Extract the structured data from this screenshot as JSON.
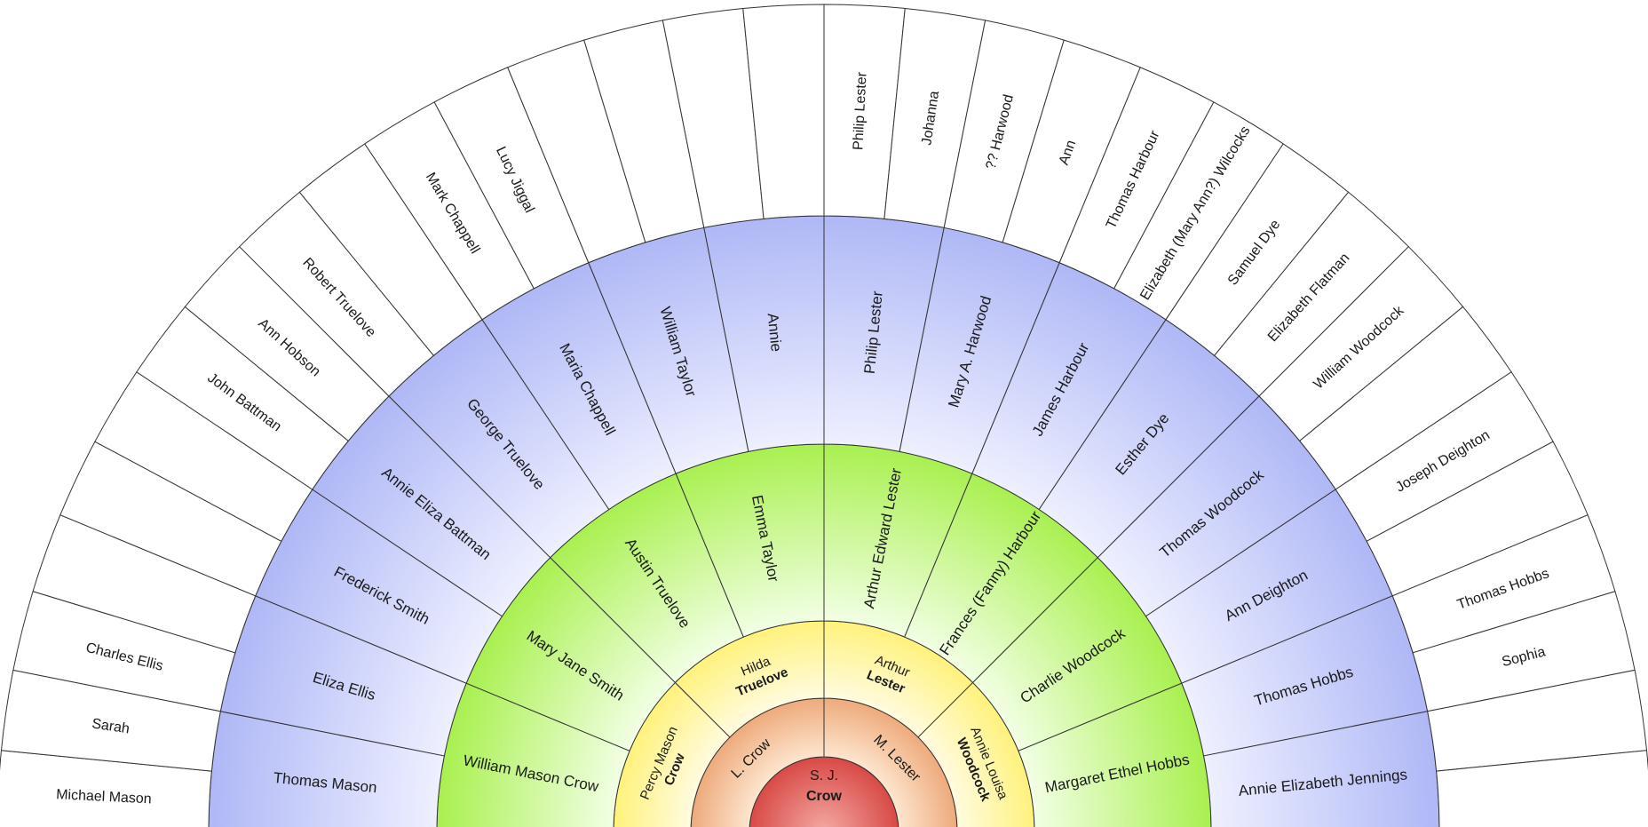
{
  "colors": {
    "ring1": [
      "#f4a9a4",
      "#d84a46"
    ],
    "ring2": [
      "#fde6cf",
      "#eeaa7c"
    ],
    "ring3": [
      "#fffbe0",
      "#fff27c"
    ],
    "ring4": [
      "#f2ffe4",
      "#a9f050"
    ],
    "ring5": [
      "#eef0ff",
      "#afb8f6"
    ],
    "ring6": [
      "#ffffff",
      "#ffffff"
    ],
    "line": "#333333"
  },
  "generations": [
    [
      {
        "line1": "S. J.",
        "line2": "Crow"
      }
    ],
    [
      {
        "line1": "L. Crow"
      },
      {
        "line1": "M. Lester"
      }
    ],
    [
      {
        "line1": "Percy Mason",
        "line2": "Crow"
      },
      {
        "line1": "Hilda",
        "line2": "Truelove"
      },
      {
        "line1": "Arthur",
        "line2": "Lester"
      },
      {
        "line1": "Annie Louisa",
        "line2": "Woodcock"
      }
    ],
    [
      {
        "line1": "William Mason Crow"
      },
      {
        "line1": "Mary Jane Smith"
      },
      {
        "line1": "Austin Truelove"
      },
      {
        "line1": "Emma Taylor"
      },
      {
        "line1": "Arthur Edward Lester"
      },
      {
        "line1": "Frances (Fanny) Harbour"
      },
      {
        "line1": "Charlie Woodcock"
      },
      {
        "line1": "Margaret Ethel Hobbs"
      }
    ],
    [
      {
        "line1": "Thomas Mason"
      },
      {
        "line1": "Eliza Ellis"
      },
      {
        "line1": "Frederick Smith"
      },
      {
        "line1": "Annie Eliza Battman"
      },
      {
        "line1": "George Truelove"
      },
      {
        "line1": "Maria Chappell"
      },
      {
        "line1": "William Taylor"
      },
      {
        "line1": "Annie"
      },
      {
        "line1": "Philip Lester"
      },
      {
        "line1": "Mary A. Harwood"
      },
      {
        "line1": "James Harbour"
      },
      {
        "line1": "Esther Dye"
      },
      {
        "line1": "Thomas Woodcock"
      },
      {
        "line1": "Ann Deighton"
      },
      {
        "line1": "Thomas Hobbs"
      },
      {
        "line1": "Annie Elizabeth Jennings"
      }
    ],
    [
      {
        "line1": "Michael Mason"
      },
      {
        "line1": "Sarah"
      },
      {
        "line1": "Charles Ellis"
      },
      {
        "line1": ""
      },
      {
        "line1": ""
      },
      {
        "line1": ""
      },
      {
        "line1": "John Battman"
      },
      {
        "line1": "Ann Hobson"
      },
      {
        "line1": "Robert Truelove"
      },
      {
        "line1": ""
      },
      {
        "line1": "Mark Chappell"
      },
      {
        "line1": "Lucy Jiggal"
      },
      {
        "line1": ""
      },
      {
        "line1": ""
      },
      {
        "line1": ""
      },
      {
        "line1": ""
      },
      {
        "line1": "Philip Lester"
      },
      {
        "line1": "Johanna"
      },
      {
        "line1": "?? Harwood"
      },
      {
        "line1": "Ann"
      },
      {
        "line1": "Thomas Harbour"
      },
      {
        "line1": "Elizabeth (Mary Ann?) Wilcocks"
      },
      {
        "line1": "Samuel Dye"
      },
      {
        "line1": "Elizabeth Flatman"
      },
      {
        "line1": "William Woodcock"
      },
      {
        "line1": ""
      },
      {
        "line1": "Joseph Deighton"
      },
      {
        "line1": ""
      },
      {
        "line1": "Thomas Hobbs"
      },
      {
        "line1": "Sophia"
      },
      {
        "line1": ""
      },
      {
        "line1": ""
      }
    ]
  ]
}
